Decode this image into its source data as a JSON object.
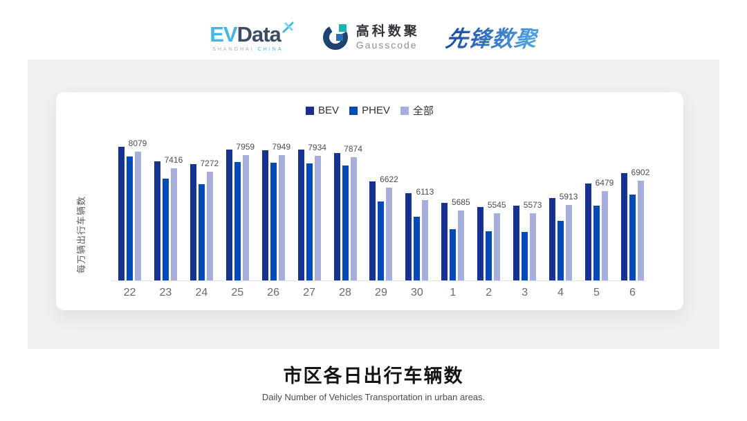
{
  "header": {
    "evdata": {
      "ev": "EV",
      "data": "Data",
      "sub_left": "SHANGHAI",
      "sub_right": "CHINA"
    },
    "gausscode": {
      "cn": "高科数聚",
      "en": "Gausscode"
    },
    "xianfeng": {
      "text": "先锋数聚"
    }
  },
  "chart_data": {
    "type": "bar",
    "title": "市区各日出行车辆数",
    "subtitle": "Daily Number of Vehicles Transportation in urban areas.",
    "ylabel": "每万辆出行车辆数",
    "xlabel": "",
    "categories": [
      "22",
      "23",
      "24",
      "25",
      "26",
      "27",
      "28",
      "29",
      "30",
      "1",
      "2",
      "3",
      "4",
      "5",
      "6"
    ],
    "series": [
      {
        "name": "BEV",
        "color": "#16338f",
        "values": [
          8300,
          7690,
          7570,
          8180,
          8160,
          8180,
          8040,
          6880,
          6370,
          5980,
          5810,
          5860,
          6180,
          6770,
          7210
        ],
        "note": "estimated from bar heights (unlabeled)"
      },
      {
        "name": "PHEV",
        "color": "#0349b8",
        "values": [
          7890,
          6980,
          6750,
          7650,
          7640,
          7600,
          7530,
          6030,
          5410,
          4900,
          4810,
          4800,
          5250,
          5860,
          6330
        ],
        "note": "estimated from bar heights (unlabeled)"
      },
      {
        "name": "全部",
        "color": "#a6afdb",
        "values": [
          8079,
          7416,
          7272,
          7959,
          7949,
          7934,
          7874,
          6622,
          6113,
          5685,
          5545,
          5573,
          5913,
          6479,
          6902
        ],
        "labeled": true
      }
    ],
    "data_labels": [
      8079,
      7416,
      7272,
      7959,
      7949,
      7934,
      7874,
      6622,
      6113,
      5685,
      5545,
      5573,
      5913,
      6479,
      6902
    ],
    "axis_min": 2800,
    "axis_max": 9200,
    "grid": false,
    "legend_position": "top",
    "colors": {
      "axis_line": "#e2e2e6",
      "tick_label": "#666a6e",
      "data_label": "#4d4d4d"
    }
  }
}
